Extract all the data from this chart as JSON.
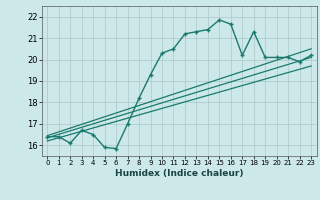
{
  "title": "",
  "xlabel": "Humidex (Indice chaleur)",
  "xlim": [
    -0.5,
    23.5
  ],
  "ylim": [
    15.5,
    22.5
  ],
  "xticks": [
    0,
    1,
    2,
    3,
    4,
    5,
    6,
    7,
    8,
    9,
    10,
    11,
    12,
    13,
    14,
    15,
    16,
    17,
    18,
    19,
    20,
    21,
    22,
    23
  ],
  "yticks": [
    16,
    17,
    18,
    19,
    20,
    21,
    22
  ],
  "bg_color": "#cce8e8",
  "grid_color": "#b0cccc",
  "line_color": "#1a7a6e",
  "line1_x": [
    0,
    1,
    2,
    3,
    4,
    5,
    6,
    7,
    8,
    9,
    10,
    11,
    12,
    13,
    14,
    15,
    16,
    17,
    18,
    19,
    20,
    21,
    22,
    23
  ],
  "line1_y": [
    16.4,
    16.4,
    16.1,
    16.7,
    16.5,
    15.9,
    15.85,
    17.0,
    18.2,
    19.3,
    20.3,
    20.5,
    21.2,
    21.3,
    21.4,
    21.85,
    21.65,
    20.2,
    21.3,
    20.1,
    20.1,
    20.1,
    19.9,
    20.2
  ],
  "line2_x": [
    0,
    23
  ],
  "line2_y": [
    16.45,
    20.5
  ],
  "line3_x": [
    0,
    23
  ],
  "line3_y": [
    16.35,
    20.1
  ],
  "line4_x": [
    0,
    23
  ],
  "line4_y": [
    16.2,
    19.7
  ]
}
